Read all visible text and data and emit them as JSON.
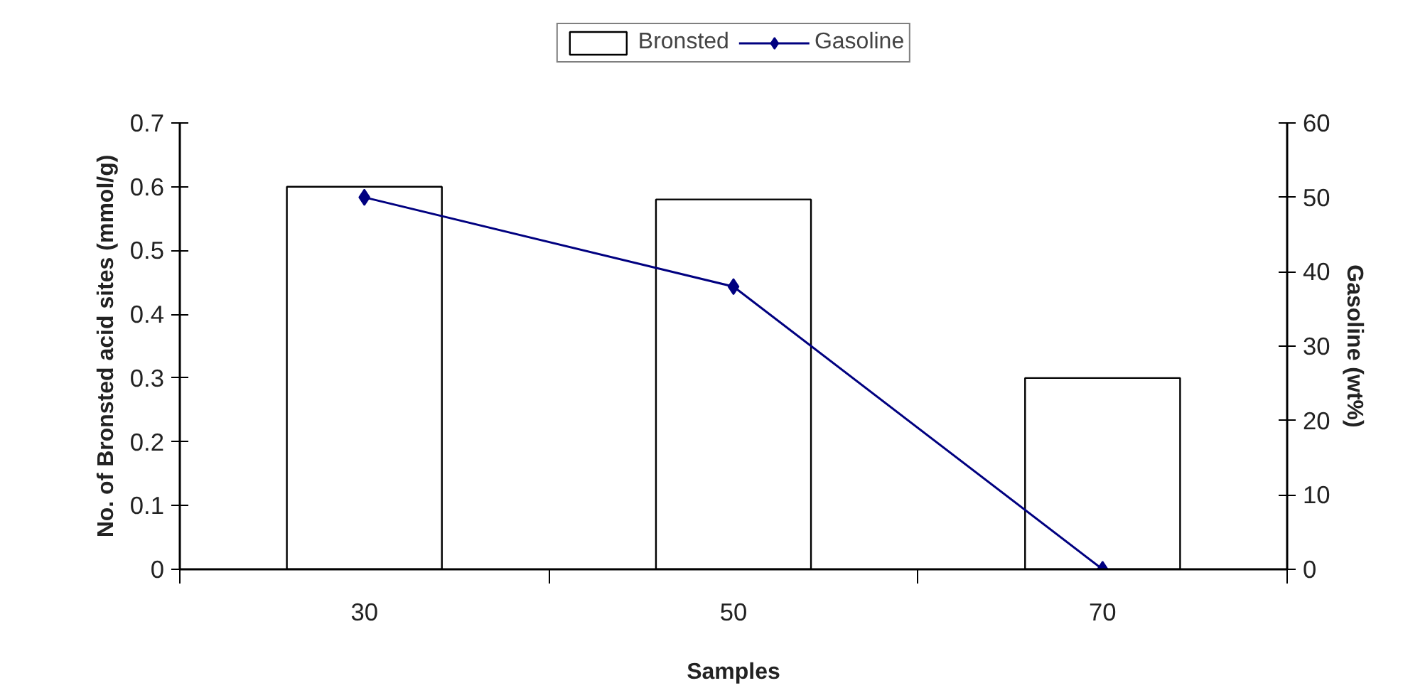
{
  "chart_data": {
    "type": "bar",
    "xlabel": "Samples",
    "ylabel": "No. of Bronsted acid sites (mmol/g)",
    "y2label": "Gasoline (wt%)",
    "categories": [
      "30",
      "50",
      "70"
    ],
    "series": [
      {
        "name": "Bronsted",
        "color": "#ffffff",
        "values": [
          0.6,
          0.58,
          0.3
        ]
      },
      {
        "name": "Gasoline",
        "type": "line",
        "axis": "y2",
        "color": "#000080",
        "marker": "diamond",
        "values": [
          50,
          38,
          0
        ]
      }
    ],
    "ylim": [
      0,
      0.7
    ],
    "yticks": [
      0,
      0.1,
      0.2,
      0.3,
      0.4,
      0.5,
      0.6,
      0.7
    ],
    "y2lim": [
      0,
      60
    ],
    "y2ticks": [
      0,
      10,
      20,
      30,
      40,
      50,
      60
    ],
    "legend": "top",
    "grid": false
  }
}
